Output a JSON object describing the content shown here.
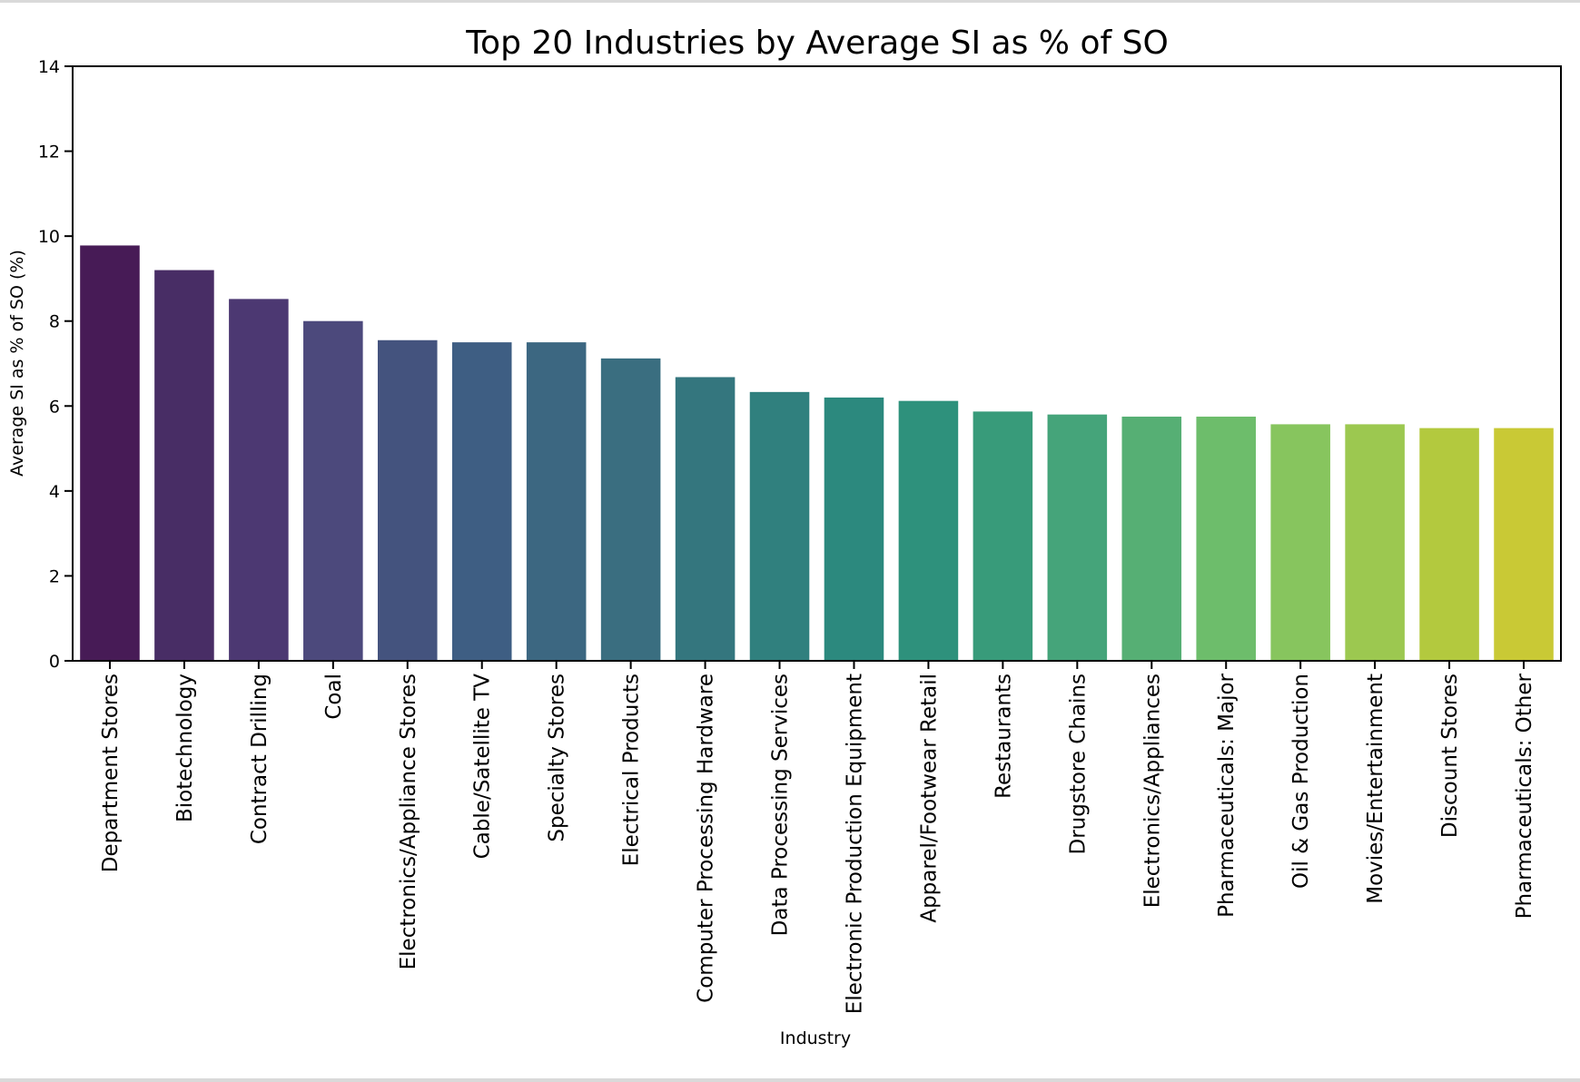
{
  "chart_data": {
    "type": "bar",
    "title": "Top 20 Industries by Average SI as % of SO",
    "xlabel": "Industry",
    "ylabel": "Average SI as % of SO (%)",
    "ylim": [
      0,
      14
    ],
    "yticks": [
      "0",
      "2",
      "4",
      "6",
      "8",
      "10",
      "12",
      "14"
    ],
    "grid": false,
    "legend": "none",
    "categories": [
      "Department Stores",
      "Biotechnology",
      "Contract Drilling",
      "Coal",
      "Electronics/Appliance Stores",
      "Cable/Satellite TV",
      "Specialty Stores",
      "Electrical Products",
      "Computer Processing Hardware",
      "Data Processing Services",
      "Electronic Production Equipment",
      "Apparel/Footwear Retail",
      "Restaurants",
      "Drugstore Chains",
      "Electronics/Appliances",
      "Pharmaceuticals: Major",
      "Oil & Gas Production",
      "Movies/Entertainment",
      "Discount Stores",
      "Pharmaceuticals: Other"
    ],
    "values": [
      9.78,
      9.2,
      8.52,
      8.0,
      7.55,
      7.5,
      7.5,
      7.12,
      6.68,
      6.33,
      6.2,
      6.12,
      5.87,
      5.8,
      5.75,
      5.75,
      5.57,
      5.57,
      5.48,
      5.48
    ],
    "colors": [
      "#471b56",
      "#482d65",
      "#4c3872",
      "#4c497c",
      "#44537e",
      "#3e5e83",
      "#3c6781",
      "#3a6e80",
      "#34767e",
      "#30807e",
      "#2c897e",
      "#2e917c",
      "#389b7a",
      "#45a47a",
      "#56af74",
      "#6dbd6b",
      "#87c55e",
      "#9cc850",
      "#b3c93e",
      "#c9c935"
    ]
  }
}
